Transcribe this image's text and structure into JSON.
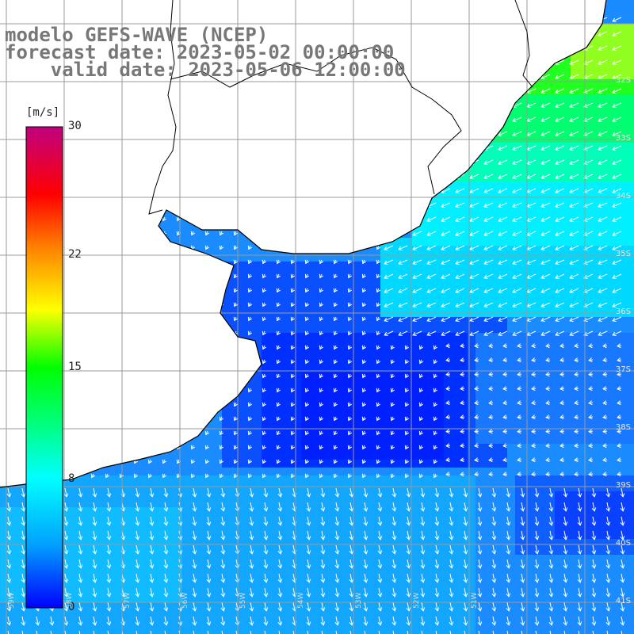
{
  "titles": {
    "line1": "modelo GEFS-WAVE (NCEP)",
    "line2": "forecast date: 2023-05-02 00:00:00",
    "line3": "    valid date: 2023-05-06 12:00:00"
  },
  "colorbar": {
    "unit": "[m/s]",
    "ticks": [
      {
        "value": 30,
        "label": "30"
      },
      {
        "value": 22,
        "label": "22"
      },
      {
        "value": 15,
        "label": "15"
      },
      {
        "value": 8,
        "label": "8"
      },
      {
        "value": 0,
        "label": "0"
      }
    ],
    "range": [
      0,
      30
    ]
  },
  "lat_labels": [
    "32S",
    "33S",
    "34S",
    "35S",
    "36S",
    "37S",
    "38S",
    "39S",
    "40S",
    "41S"
  ],
  "lon_labels": [
    "59W",
    "58W",
    "57W",
    "56W",
    "55W",
    "54W",
    "53W",
    "52W",
    "51W"
  ],
  "colors": {
    "land": "#ffffff",
    "coast": "#000000",
    "grid": "#9a9a9a",
    "arrows": "#ffffff",
    "title": "#777777"
  }
}
